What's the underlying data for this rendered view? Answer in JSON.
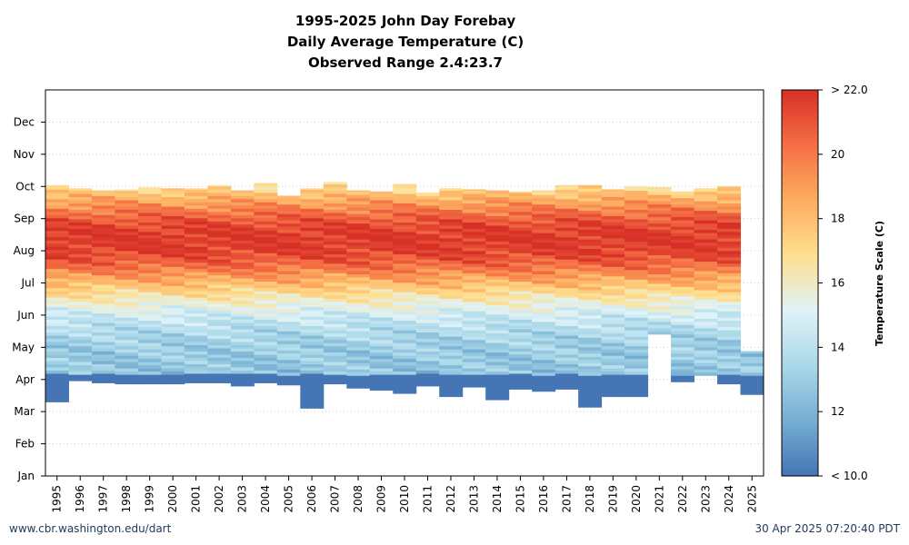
{
  "chart_data": {
    "type": "heatmap",
    "title": [
      "1995-2025 John Day Forebay",
      "Daily Average Temperature (C)",
      "Observed Range 2.4:23.7"
    ],
    "xlabel": "",
    "ylabel": "",
    "x_categories": [
      "1995",
      "1996",
      "1997",
      "1998",
      "1999",
      "2000",
      "2001",
      "2002",
      "2003",
      "2004",
      "2005",
      "2006",
      "2007",
      "2008",
      "2009",
      "2010",
      "2011",
      "2012",
      "2013",
      "2014",
      "2015",
      "2016",
      "2017",
      "2018",
      "2019",
      "2020",
      "2021",
      "2022",
      "2023",
      "2024",
      "2025"
    ],
    "y_ticks": [
      "Jan",
      "Feb",
      "Mar",
      "Apr",
      "May",
      "Jun",
      "Jul",
      "Aug",
      "Sep",
      "Oct",
      "Nov",
      "Dec"
    ],
    "grid": true,
    "colorbar": {
      "label": "Temperature Scale (C)",
      "range": [
        10,
        22
      ],
      "ticks": [
        "< 10.0",
        "12",
        "14",
        "16",
        "18",
        "20",
        "> 22.0"
      ],
      "colors": [
        "#4575b4",
        "#74add1",
        "#abd9e9",
        "#e0f3f8",
        "#fee090",
        "#fdae61",
        "#f46d43",
        "#d73027"
      ]
    },
    "series": [
      {
        "year": "1995",
        "start_day": 70,
        "end_day": 275
      },
      {
        "year": "1996",
        "start_day": 90,
        "end_day": 272
      },
      {
        "year": "1997",
        "start_day": 88,
        "end_day": 270
      },
      {
        "year": "1998",
        "start_day": 87,
        "end_day": 271
      },
      {
        "year": "1999",
        "start_day": 87,
        "end_day": 273
      },
      {
        "year": "2000",
        "start_day": 87,
        "end_day": 272
      },
      {
        "year": "2001",
        "start_day": 88,
        "end_day": 272
      },
      {
        "year": "2002",
        "start_day": 88,
        "end_day": 275
      },
      {
        "year": "2003",
        "start_day": 85,
        "end_day": 270
      },
      {
        "year": "2004",
        "start_day": 88,
        "end_day": 277
      },
      {
        "year": "2005",
        "start_day": 86,
        "end_day": 265
      },
      {
        "year": "2006",
        "start_day": 64,
        "end_day": 272
      },
      {
        "year": "2007",
        "start_day": 87,
        "end_day": 278
      },
      {
        "year": "2008",
        "start_day": 83,
        "end_day": 270
      },
      {
        "year": "2009",
        "start_day": 81,
        "end_day": 269
      },
      {
        "year": "2010",
        "start_day": 78,
        "end_day": 276
      },
      {
        "year": "2011",
        "start_day": 85,
        "end_day": 268
      },
      {
        "year": "2012",
        "start_day": 75,
        "end_day": 272
      },
      {
        "year": "2013",
        "start_day": 84,
        "end_day": 271
      },
      {
        "year": "2014",
        "start_day": 72,
        "end_day": 270
      },
      {
        "year": "2015",
        "start_day": 82,
        "end_day": 269
      },
      {
        "year": "2016",
        "start_day": 80,
        "end_day": 270
      },
      {
        "year": "2017",
        "start_day": 82,
        "end_day": 275
      },
      {
        "year": "2018",
        "start_day": 65,
        "end_day": 275
      },
      {
        "year": "2019",
        "start_day": 75,
        "end_day": 271
      },
      {
        "year": "2020",
        "start_day": 75,
        "end_day": 274
      },
      {
        "year": "2021",
        "start_day": 134,
        "end_day": 273
      },
      {
        "year": "2022",
        "start_day": 89,
        "end_day": 269
      },
      {
        "year": "2023",
        "start_day": 95,
        "end_day": 272
      },
      {
        "year": "2024",
        "start_day": 87,
        "end_day": 274
      },
      {
        "year": "2025",
        "start_day": 77,
        "end_day": 118
      }
    ]
  },
  "footer": {
    "left": "www.cbr.washington.edu/dart",
    "right": "30 Apr 2025 07:20:40 PDT"
  }
}
